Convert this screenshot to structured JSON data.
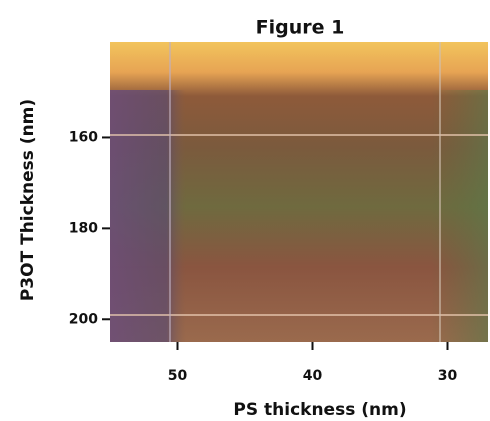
{
  "chart_data": {
    "type": "image",
    "title": "Figure 1",
    "xlabel": "PS thickness (nm)",
    "ylabel": "P3OT Thickness (nm)",
    "xlim": [
      55,
      27
    ],
    "xticks": [
      50,
      40,
      30
    ],
    "ylim": [
      139,
      205
    ],
    "yticks": [
      160,
      180,
      200
    ]
  }
}
